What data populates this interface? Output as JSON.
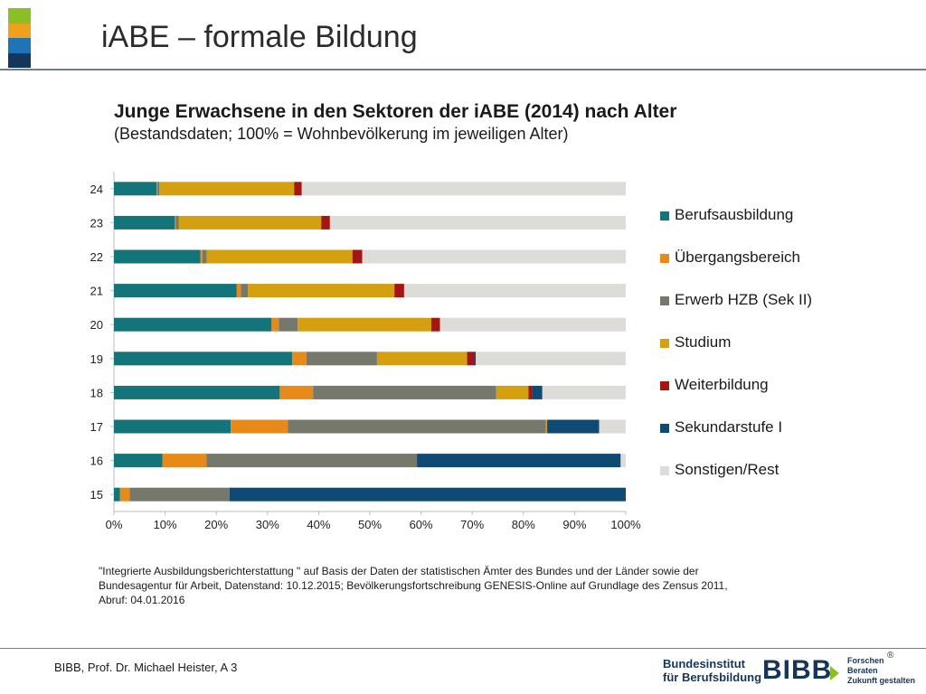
{
  "slide": {
    "title": "iABE – formale Bildung",
    "footer": "BIBB, Prof. Dr. Michael Heister, A 3",
    "source_note": "\"Integrierte Ausbildungsberichterstattung \" auf Basis der Daten der statistischen Ämter des Bundes und der Länder sowie der Bundesagentur für Arbeit, Datenstand: 10.12.2015; Bevölkerungsfortschreibung GENESIS-Online auf Grundlage des Zensus 2011, Abruf: 04.01.2016"
  },
  "logo": {
    "name_line1": "Bundesinstitut",
    "name_line2": "für Berufsbildung",
    "mark": "BIBB",
    "tag_line1": "Forschen",
    "tag_line2": "Beraten",
    "tag_line3": "Zukunft gestalten",
    "registered": "®"
  },
  "chart_data": {
    "type": "bar",
    "orientation": "horizontal",
    "stacked": true,
    "title": "Junge Erwachsene in den Sektoren der iABE (2014) nach Alter",
    "subtitle": "(Bestandsdaten; 100% = Wohnbevölkerung im jeweiligen Alter)",
    "xlabel": "",
    "ylabel": "",
    "xlim": [
      0,
      100
    ],
    "x_ticks": [
      "0%",
      "10%",
      "20%",
      "30%",
      "40%",
      "50%",
      "60%",
      "70%",
      "80%",
      "90%",
      "100%"
    ],
    "categories": [
      "24",
      "23",
      "22",
      "21",
      "20",
      "19",
      "18",
      "17",
      "16",
      "15"
    ],
    "legend_position": "right",
    "series": [
      {
        "name": "Berufsausbildung",
        "color": "#137479",
        "values": [
          8.3,
          11.9,
          16.9,
          24.0,
          30.8,
          34.8,
          32.4,
          22.8,
          9.5,
          1.2
        ]
      },
      {
        "name": "Übergangsbereich",
        "color": "#e88a1a",
        "values": [
          0.2,
          0.2,
          0.4,
          0.8,
          1.4,
          2.8,
          6.5,
          11.2,
          8.6,
          1.9
        ]
      },
      {
        "name": "Erwerb HZB (Sek II)",
        "color": "#77786c",
        "values": [
          0.4,
          0.6,
          0.8,
          1.4,
          3.7,
          13.8,
          35.8,
          50.4,
          41.1,
          19.5
        ]
      },
      {
        "name": "Studium",
        "color": "#d4a00f",
        "values": [
          26.3,
          27.8,
          28.5,
          28.6,
          26.1,
          17.6,
          6.3,
          0.2,
          0.0,
          0.0
        ]
      },
      {
        "name": "Weiterbildung",
        "color": "#a51613",
        "values": [
          1.5,
          1.7,
          1.9,
          1.9,
          1.7,
          1.4,
          0.7,
          0.1,
          0.0,
          0.0
        ]
      },
      {
        "name": "Sekundarstufe I",
        "color": "#0e4a74",
        "values": [
          0.0,
          0.0,
          0.0,
          0.0,
          0.0,
          0.3,
          2.0,
          10.1,
          39.8,
          77.4
        ]
      },
      {
        "name": "Sonstigen/Rest",
        "color": "#dedcd8",
        "values": [
          63.3,
          57.8,
          51.5,
          43.3,
          36.3,
          29.3,
          16.3,
          5.2,
          1.0,
          0.0
        ]
      }
    ]
  }
}
